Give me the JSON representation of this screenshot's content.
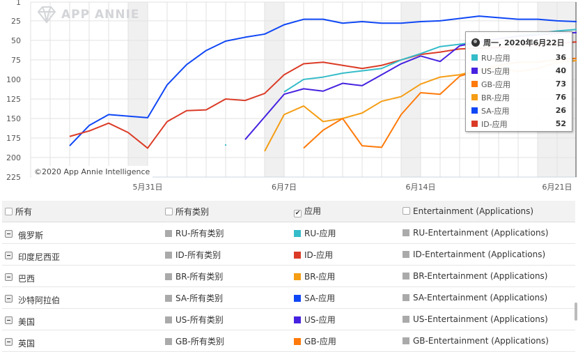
{
  "chart_data": {
    "type": "line",
    "x": [
      "5月25日",
      "5月26日",
      "5月27日",
      "5月28日",
      "5月29日",
      "5月30日",
      "5月31日",
      "6月1日",
      "6月2日",
      "6月3日",
      "6月4日",
      "6月5日",
      "6月6日",
      "6月7日",
      "6月8日",
      "6月9日",
      "6月10日",
      "6月11日",
      "6月12日",
      "6月13日",
      "6月14日",
      "6月15日",
      "6月16日",
      "6月17日",
      "6月18日",
      "6月19日",
      "6月20日",
      "6月21日",
      "6月22日"
    ],
    "x_tick_labels": [
      "5月31日",
      "6月7日",
      "6月14日",
      "6月21日"
    ],
    "y_tick_labels": [
      "1",
      "25",
      "50",
      "75",
      "100",
      "125",
      "150",
      "175",
      "200",
      "225"
    ],
    "ylim": [
      1,
      225
    ],
    "y_reversed": true,
    "grid": true,
    "shaded_periods": [
      [
        "5月30日",
        "5月31日"
      ],
      [
        "6月6日",
        "6月7日"
      ],
      [
        "6月13日",
        "6月14日"
      ],
      [
        "6月20日",
        "6月22日"
      ]
    ],
    "series": [
      {
        "name": "SA-应用",
        "color": "#0f47f5",
        "values": [
          null,
          null,
          185,
          159,
          145,
          147,
          149,
          107,
          81,
          63,
          51,
          46,
          42,
          30,
          23,
          23,
          28,
          26,
          28,
          28,
          26,
          25,
          22,
          19,
          21,
          23,
          23,
          25,
          26
        ]
      },
      {
        "name": "ID-应用",
        "color": "#db3b26",
        "values": [
          null,
          null,
          173,
          166,
          156,
          168,
          188,
          154,
          140,
          139,
          125,
          127,
          118,
          94,
          80,
          78,
          82,
          86,
          82,
          75,
          68,
          65,
          61,
          60,
          59,
          58,
          56,
          54,
          52
        ]
      },
      {
        "name": "RU-应用",
        "color": "#35bcc9",
        "values": [
          null,
          null,
          null,
          null,
          null,
          null,
          null,
          null,
          null,
          null,
          184,
          null,
          null,
          116,
          100,
          97,
          92,
          89,
          86,
          75,
          67,
          58,
          55,
          52,
          48,
          44,
          41,
          38,
          36
        ]
      },
      {
        "name": "US-应用",
        "color": "#4622e0",
        "values": [
          null,
          null,
          null,
          null,
          null,
          null,
          null,
          null,
          null,
          null,
          null,
          177,
          148,
          119,
          112,
          115,
          105,
          108,
          94,
          80,
          70,
          77,
          57,
          52,
          48,
          45,
          43,
          41,
          40
        ]
      },
      {
        "name": "BR-应用",
        "color": "#f59d14",
        "values": [
          null,
          null,
          null,
          null,
          null,
          null,
          null,
          null,
          null,
          null,
          null,
          null,
          192,
          145,
          134,
          154,
          150,
          143,
          128,
          122,
          106,
          97,
          94,
          88,
          85,
          90,
          86,
          78,
          76
        ]
      },
      {
        "name": "GB-应用",
        "color": "#ff7a0a",
        "values": [
          null,
          null,
          null,
          null,
          null,
          null,
          null,
          null,
          null,
          null,
          null,
          null,
          null,
          null,
          188,
          165,
          150,
          185,
          187,
          145,
          117,
          119,
          96,
          88,
          82,
          78,
          78,
          75,
          73
        ]
      }
    ]
  },
  "watermark": "APP ANNIE",
  "copyright": "©2020 App Annie Intelligence",
  "tooltip": {
    "title": "周一, 2020年6月22日",
    "icon": "globe-icon",
    "rows": [
      {
        "label": "RU-应用",
        "value": "36",
        "color": "#35bcc9"
      },
      {
        "label": "US-应用",
        "value": "40",
        "color": "#4622e0"
      },
      {
        "label": "GB-应用",
        "value": "73",
        "color": "#ff7a0a"
      },
      {
        "label": "BR-应用",
        "value": "76",
        "color": "#f59d14"
      },
      {
        "label": "SA-应用",
        "value": "26",
        "color": "#0f47f5"
      },
      {
        "label": "ID-应用",
        "value": "52",
        "color": "#db3b26"
      }
    ]
  },
  "table": {
    "headers": [
      {
        "label": "所有",
        "checked": false
      },
      {
        "label": "所有类别",
        "checked": false
      },
      {
        "label": "应用",
        "checked": true
      },
      {
        "label": "Entertainment (Applications)",
        "checked": false
      }
    ],
    "rows": [
      {
        "country": "俄罗斯",
        "all": "RU-所有类别",
        "app": "RU-应用",
        "app_color": "#35bcc9",
        "ent": "RU-Entertainment (Applications)"
      },
      {
        "country": "印度尼西亚",
        "all": "ID-所有类别",
        "app": "ID-应用",
        "app_color": "#db3b26",
        "ent": "ID-Entertainment (Applications)"
      },
      {
        "country": "巴西",
        "all": "BR-所有类别",
        "app": "BR-应用",
        "app_color": "#f59d14",
        "ent": "BR-Entertainment (Applications)"
      },
      {
        "country": "沙特阿拉伯",
        "all": "SA-所有类别",
        "app": "SA-应用",
        "app_color": "#0f47f5",
        "ent": "SA-Entertainment (Applications)"
      },
      {
        "country": "美国",
        "all": "US-所有类别",
        "app": "US-应用",
        "app_color": "#4622e0",
        "ent": "US-Entertainment (Applications)"
      },
      {
        "country": "英国",
        "all": "GB-所有类别",
        "app": "GB-应用",
        "app_color": "#ff7a0a",
        "ent": "GB-Entertainment (Applications)"
      }
    ],
    "inactive_color": "#aaaaaa"
  }
}
